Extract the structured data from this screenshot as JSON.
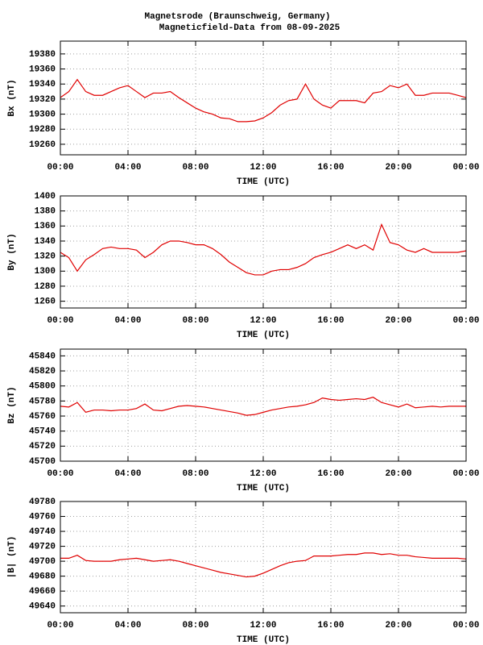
{
  "chart_data": [
    {
      "type": "line",
      "title": "Magnetsrode (Braunschweig, Germany)",
      "subtitle": "Magneticfield-Data from 08-09-2025",
      "xlabel": "TIME (UTC)",
      "ylabel": "Bx (nT)",
      "grid": true,
      "xlim": [
        0,
        24
      ],
      "xticks": [
        {
          "value": 0,
          "label": "00:00"
        },
        {
          "value": 4,
          "label": "04:00"
        },
        {
          "value": 8,
          "label": "08:00"
        },
        {
          "value": 12,
          "label": "12:00"
        },
        {
          "value": 16,
          "label": "16:00"
        },
        {
          "value": 20,
          "label": "20:00"
        },
        {
          "value": 24,
          "label": "00:00"
        }
      ],
      "ylim": [
        19246,
        19397
      ],
      "yticks": [
        19260,
        19280,
        19300,
        19320,
        19340,
        19360,
        19380
      ],
      "x": [
        0,
        0.5,
        1,
        1.5,
        2,
        2.5,
        3,
        3.5,
        4,
        4.5,
        5,
        5.5,
        6,
        6.5,
        7,
        7.5,
        8,
        8.5,
        9,
        9.5,
        10,
        10.5,
        11,
        11.5,
        12,
        12.5,
        13,
        13.5,
        14,
        14.5,
        15,
        15.5,
        16,
        16.5,
        17,
        17.5,
        18,
        18.5,
        19,
        19.5,
        20,
        20.5,
        21,
        21.5,
        22,
        22.5,
        23,
        23.5,
        24
      ],
      "series": [
        {
          "color": "#e00000",
          "values": [
            19322,
            19330,
            19346,
            19330,
            19325,
            19325,
            19330,
            19335,
            19338,
            19330,
            19322,
            19328,
            19328,
            19330,
            19322,
            19315,
            19308,
            19303,
            19300,
            19295,
            19294,
            19290,
            19290,
            19291,
            19295,
            19302,
            19312,
            19318,
            19320,
            19340,
            19320,
            19312,
            19308,
            19318,
            19318,
            19318,
            19315,
            19328,
            19330,
            19338,
            19335,
            19340,
            19325,
            19325,
            19328,
            19328,
            19328,
            19325,
            19322
          ]
        }
      ]
    },
    {
      "type": "line",
      "xlabel": "TIME (UTC)",
      "ylabel": "By (nT)",
      "grid": true,
      "xlim": [
        0,
        24
      ],
      "xticks": [
        {
          "value": 0,
          "label": "00:00"
        },
        {
          "value": 4,
          "label": "04:00"
        },
        {
          "value": 8,
          "label": "08:00"
        },
        {
          "value": 12,
          "label": "12:00"
        },
        {
          "value": 16,
          "label": "16:00"
        },
        {
          "value": 20,
          "label": "20:00"
        },
        {
          "value": 24,
          "label": "00:00"
        }
      ],
      "ylim": [
        1251,
        1400
      ],
      "yticks": [
        1260,
        1280,
        1300,
        1320,
        1340,
        1360,
        1380,
        1400
      ],
      "x": [
        0,
        0.5,
        1,
        1.5,
        2,
        2.5,
        3,
        3.5,
        4,
        4.5,
        5,
        5.5,
        6,
        6.5,
        7,
        7.5,
        8,
        8.5,
        9,
        9.5,
        10,
        10.5,
        11,
        11.5,
        12,
        12.5,
        13,
        13.5,
        14,
        14.5,
        15,
        15.5,
        16,
        16.5,
        17,
        17.5,
        18,
        18.5,
        19,
        19.5,
        20,
        20.5,
        21,
        21.5,
        22,
        22.5,
        23,
        23.5,
        24
      ],
      "series": [
        {
          "color": "#e00000",
          "values": [
            1325,
            1318,
            1300,
            1315,
            1322,
            1330,
            1332,
            1330,
            1330,
            1328,
            1318,
            1325,
            1335,
            1340,
            1340,
            1338,
            1335,
            1335,
            1330,
            1322,
            1312,
            1305,
            1298,
            1295,
            1295,
            1300,
            1302,
            1302,
            1305,
            1310,
            1318,
            1322,
            1325,
            1330,
            1335,
            1330,
            1335,
            1328,
            1362,
            1338,
            1335,
            1328,
            1325,
            1330,
            1325,
            1325,
            1325,
            1325,
            1327
          ]
        }
      ]
    },
    {
      "type": "line",
      "xlabel": "TIME (UTC)",
      "ylabel": "Bz (nT)",
      "grid": true,
      "xlim": [
        0,
        24
      ],
      "xticks": [
        {
          "value": 0,
          "label": "00:00"
        },
        {
          "value": 4,
          "label": "04:00"
        },
        {
          "value": 8,
          "label": "08:00"
        },
        {
          "value": 12,
          "label": "12:00"
        },
        {
          "value": 16,
          "label": "16:00"
        },
        {
          "value": 20,
          "label": "20:00"
        },
        {
          "value": 24,
          "label": "00:00"
        }
      ],
      "ylim": [
        45700,
        45849
      ],
      "yticks": [
        45700,
        45720,
        45740,
        45760,
        45780,
        45800,
        45820,
        45840
      ],
      "x": [
        0,
        0.5,
        1,
        1.5,
        2,
        2.5,
        3,
        3.5,
        4,
        4.5,
        5,
        5.5,
        6,
        6.5,
        7,
        7.5,
        8,
        8.5,
        9,
        9.5,
        10,
        10.5,
        11,
        11.5,
        12,
        12.5,
        13,
        13.5,
        14,
        14.5,
        15,
        15.5,
        16,
        16.5,
        17,
        17.5,
        18,
        18.5,
        19,
        19.5,
        20,
        20.5,
        21,
        21.5,
        22,
        22.5,
        23,
        23.5,
        24
      ],
      "series": [
        {
          "color": "#e00000",
          "values": [
            45773,
            45772,
            45778,
            45765,
            45768,
            45768,
            45767,
            45768,
            45768,
            45770,
            45776,
            45768,
            45767,
            45770,
            45773,
            45774,
            45773,
            45772,
            45770,
            45768,
            45766,
            45764,
            45761,
            45762,
            45765,
            45768,
            45770,
            45772,
            45773,
            45775,
            45778,
            45784,
            45782,
            45781,
            45782,
            45783,
            45782,
            45785,
            45778,
            45775,
            45772,
            45776,
            45771,
            45772,
            45773,
            45772,
            45773,
            45773,
            45773
          ]
        }
      ]
    },
    {
      "type": "line",
      "xlabel": "TIME (UTC)",
      "ylabel": "|B| (nT)",
      "grid": true,
      "xlim": [
        0,
        24
      ],
      "xticks": [
        {
          "value": 0,
          "label": "00:00"
        },
        {
          "value": 4,
          "label": "04:00"
        },
        {
          "value": 8,
          "label": "08:00"
        },
        {
          "value": 12,
          "label": "12:00"
        },
        {
          "value": 16,
          "label": "16:00"
        },
        {
          "value": 20,
          "label": "20:00"
        },
        {
          "value": 24,
          "label": "00:00"
        }
      ],
      "ylim": [
        49631,
        49780
      ],
      "yticks": [
        49640,
        49660,
        49680,
        49700,
        49720,
        49740,
        49760,
        49780
      ],
      "x": [
        0,
        0.5,
        1,
        1.5,
        2,
        2.5,
        3,
        3.5,
        4,
        4.5,
        5,
        5.5,
        6,
        6.5,
        7,
        7.5,
        8,
        8.5,
        9,
        9.5,
        10,
        10.5,
        11,
        11.5,
        12,
        12.5,
        13,
        13.5,
        14,
        14.5,
        15,
        15.5,
        16,
        16.5,
        17,
        17.5,
        18,
        18.5,
        19,
        19.5,
        20,
        20.5,
        21,
        21.5,
        22,
        22.5,
        23,
        23.5,
        24
      ],
      "series": [
        {
          "color": "#e00000",
          "values": [
            49704,
            49704,
            49708,
            49701,
            49700,
            49700,
            49700,
            49702,
            49703,
            49704,
            49702,
            49700,
            49701,
            49702,
            49700,
            49697,
            49694,
            49691,
            49688,
            49685,
            49683,
            49681,
            49679,
            49680,
            49684,
            49689,
            49694,
            49698,
            49700,
            49701,
            49707,
            49707,
            49707,
            49708,
            49709,
            49709,
            49711,
            49711,
            49709,
            49710,
            49708,
            49708,
            49706,
            49705,
            49704,
            49704,
            49704,
            49704,
            49703
          ]
        }
      ]
    }
  ]
}
